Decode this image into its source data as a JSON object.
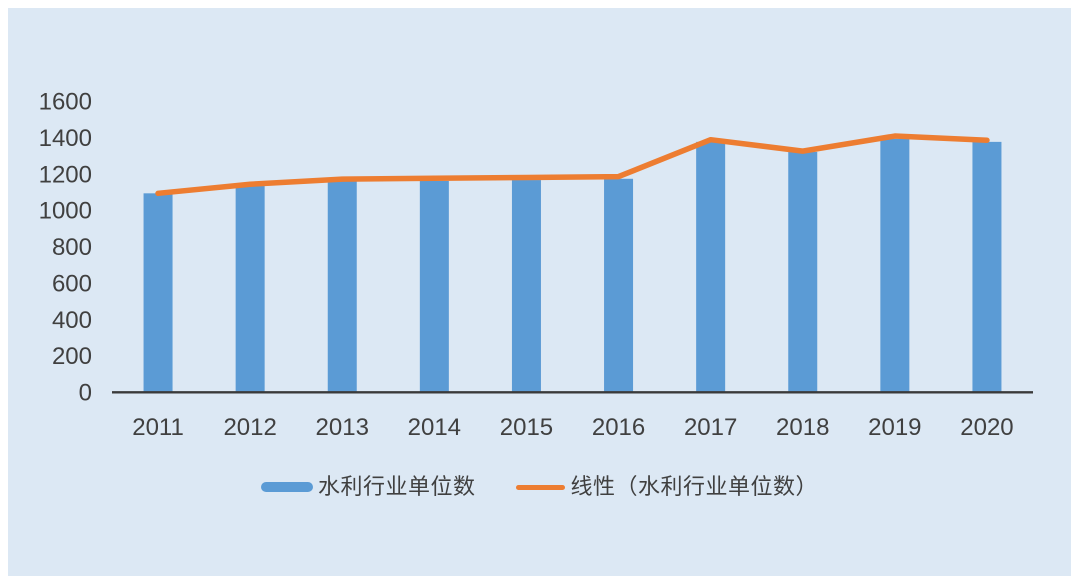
{
  "chart_data": {
    "type": "bar",
    "categories": [
      "2011",
      "2012",
      "2013",
      "2014",
      "2015",
      "2016",
      "2017",
      "2018",
      "2019",
      "2020"
    ],
    "series": [
      {
        "name": "水利行业单位数",
        "type": "bar",
        "color": "#5B9BD5",
        "values": [
          1090,
          1130,
          1155,
          1158,
          1163,
          1170,
          1373,
          1318,
          1390,
          1373
        ]
      },
      {
        "name": "线性（水利行业单位数）",
        "type": "line",
        "color": "#ED7D31",
        "values": [
          1090,
          1140,
          1168,
          1173,
          1177,
          1182,
          1385,
          1322,
          1405,
          1382
        ]
      }
    ],
    "ylim": [
      0,
      1600
    ],
    "yticks": [
      0,
      200,
      400,
      600,
      800,
      1000,
      1200,
      1400,
      1600
    ],
    "grid": false,
    "legend_position": "bottom"
  },
  "style": {
    "panel_bg": "#DCE8F4",
    "page_bg": "#FFFFFF",
    "bar_color": "#5B9BD5",
    "line_color": "#ED7D31",
    "axis_color": "#3A3A3A",
    "text_color": "#404040"
  }
}
